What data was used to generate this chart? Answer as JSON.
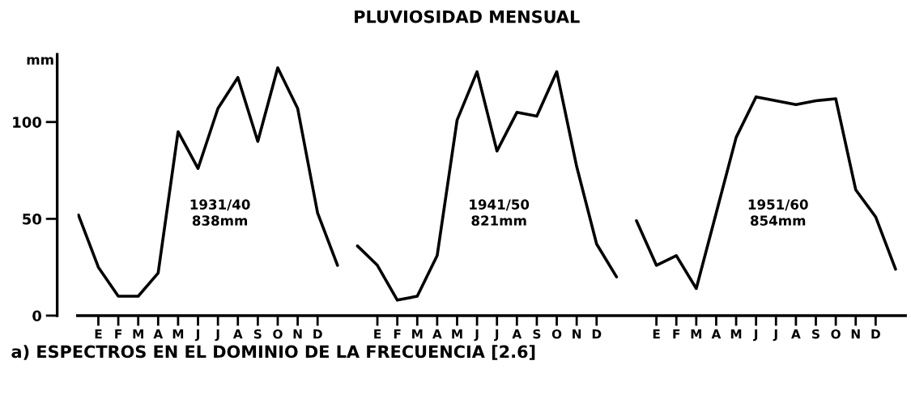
{
  "chart_data": {
    "type": "line",
    "title": "PLUVIOSIDAD MENSUAL",
    "ylabel": "mm",
    "ylim": [
      0,
      135
    ],
    "yticks": [
      0,
      50,
      100
    ],
    "categories": [
      null,
      "E",
      "F",
      "M",
      "A",
      "M",
      "J",
      "J",
      "A",
      "S",
      "O",
      "N",
      "D",
      null,
      null,
      "E",
      "F",
      "M",
      "A",
      "M",
      "J",
      "J",
      "A",
      "S",
      "O",
      "N",
      "D",
      null,
      null,
      "E",
      "F",
      "M",
      "A",
      "M",
      "J",
      "J",
      "A",
      "S",
      "O",
      "N",
      "D",
      null
    ],
    "marker": "none",
    "line_style": "solid",
    "series": [
      {
        "name": "1931/40\n838mm",
        "color": "#000000",
        "values": [
          52,
          25,
          10,
          10,
          22,
          95,
          76,
          107,
          123,
          90,
          128,
          107,
          53,
          26,
          null,
          null,
          null,
          null,
          null,
          null,
          null,
          null,
          null,
          null,
          null,
          null,
          null,
          null,
          null,
          null,
          null,
          null,
          null,
          null,
          null,
          null,
          null,
          null,
          null,
          null,
          null,
          null
        ]
      },
      {
        "name": "1941/50\n821mm",
        "color": "#000000",
        "values": [
          null,
          null,
          null,
          null,
          null,
          null,
          null,
          null,
          null,
          null,
          null,
          null,
          null,
          null,
          36,
          26,
          8,
          10,
          31,
          101,
          126,
          85,
          105,
          103,
          126,
          77,
          37,
          20,
          null,
          null,
          null,
          null,
          null,
          null,
          null,
          null,
          null,
          null,
          null,
          null,
          null,
          null
        ]
      },
      {
        "name": "1951/60\n854mm",
        "color": "#000000",
        "values": [
          null,
          null,
          null,
          null,
          null,
          null,
          null,
          null,
          null,
          null,
          null,
          null,
          null,
          null,
          null,
          null,
          null,
          null,
          null,
          null,
          null,
          null,
          null,
          null,
          null,
          null,
          null,
          null,
          49,
          26,
          31,
          14,
          53,
          92,
          113,
          111,
          109,
          111,
          112,
          65,
          51,
          24
        ]
      }
    ],
    "annotations": [
      "a) ESPECTROS EN EL DOMINIO DE LA FRECUENCIA [2.6]"
    ]
  }
}
